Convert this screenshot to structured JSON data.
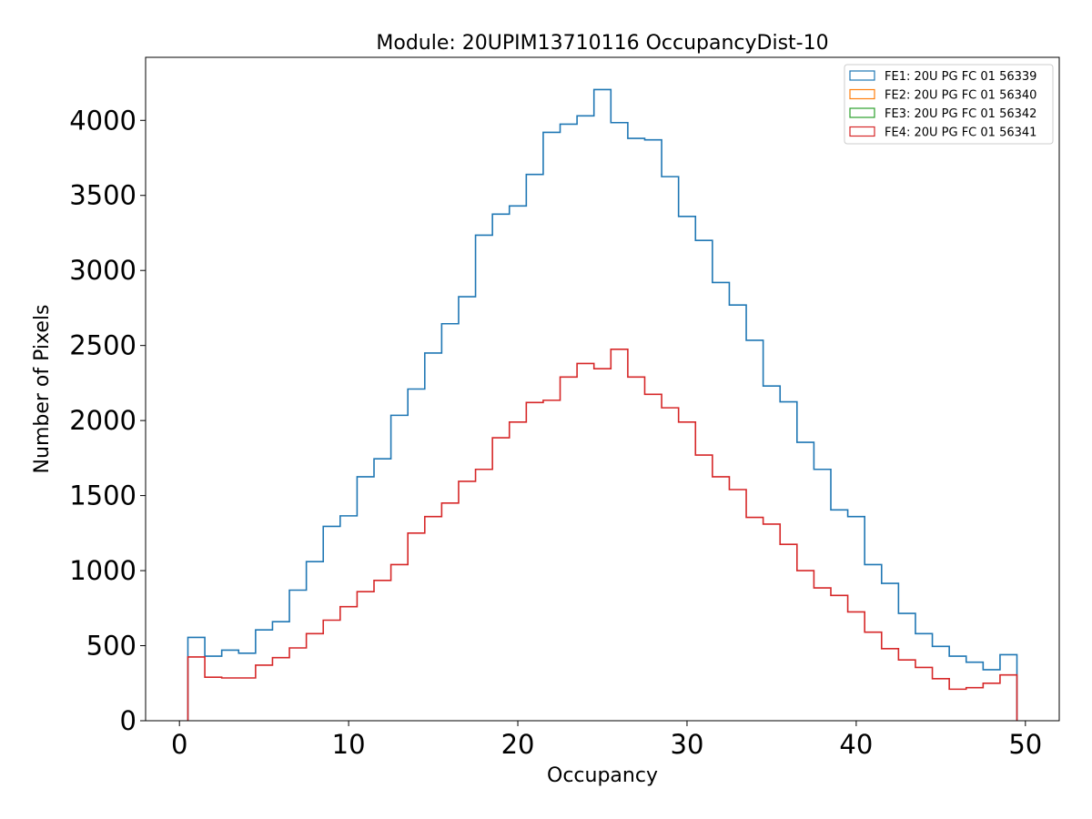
{
  "chart_data": {
    "type": "histogram",
    "title": "Module: 20UPIM13710116 OccupancyDist-10",
    "xlabel": "Occupancy",
    "ylabel": "Number of Pixels",
    "xlim": [
      -2,
      52
    ],
    "ylim": [
      0,
      4420
    ],
    "xticks": [
      0,
      10,
      20,
      30,
      40,
      50
    ],
    "yticks": [
      0,
      500,
      1000,
      1500,
      2000,
      2500,
      3000,
      3500,
      4000
    ],
    "bin_edges": [
      0.5,
      1.5,
      2.5,
      3.5,
      4.5,
      5.5,
      6.5,
      7.5,
      8.5,
      9.5,
      10.5,
      11.5,
      12.5,
      13.5,
      14.5,
      15.5,
      16.5,
      17.5,
      18.5,
      19.5,
      20.5,
      21.5,
      22.5,
      23.5,
      24.5,
      25.5,
      26.5,
      27.5,
      28.5,
      29.5,
      30.5,
      31.5,
      32.5,
      33.5,
      34.5,
      35.5,
      36.5,
      37.5,
      38.5,
      39.5,
      40.5,
      41.5,
      42.5,
      43.5,
      44.5,
      45.5,
      46.5,
      47.5,
      48.5,
      49.5
    ],
    "series": [
      {
        "name": "FE1: 20U PG FC 01 56339",
        "color": "#1f77b4",
        "values": [
          555,
          430,
          470,
          450,
          605,
          660,
          870,
          1060,
          1295,
          1365,
          1625,
          1745,
          2035,
          2210,
          2450,
          2645,
          2825,
          3235,
          3375,
          3430,
          3640,
          3920,
          3975,
          4030,
          4205,
          3985,
          3880,
          3870,
          3625,
          3360,
          3200,
          2920,
          2770,
          2535,
          2230,
          2125,
          1855,
          1675,
          1405,
          1360,
          1040,
          915,
          715,
          580,
          495,
          430,
          390,
          340,
          440
        ]
      },
      {
        "name": "FE2: 20U PG FC 01 56340",
        "color": "#ff7f0e",
        "values": []
      },
      {
        "name": "FE3: 20U PG FC 01 56342",
        "color": "#2ca02c",
        "values": []
      },
      {
        "name": "FE4: 20U PG FC 01 56341",
        "color": "#d62728",
        "values": [
          425,
          290,
          285,
          285,
          370,
          420,
          485,
          580,
          670,
          760,
          860,
          935,
          1040,
          1250,
          1360,
          1450,
          1595,
          1675,
          1885,
          1990,
          2120,
          2135,
          2290,
          2380,
          2345,
          2475,
          2290,
          2175,
          2085,
          1990,
          1770,
          1625,
          1540,
          1355,
          1310,
          1175,
          1000,
          885,
          835,
          725,
          590,
          480,
          405,
          355,
          280,
          210,
          220,
          250,
          305
        ]
      }
    ],
    "legend_position": "top-right"
  }
}
